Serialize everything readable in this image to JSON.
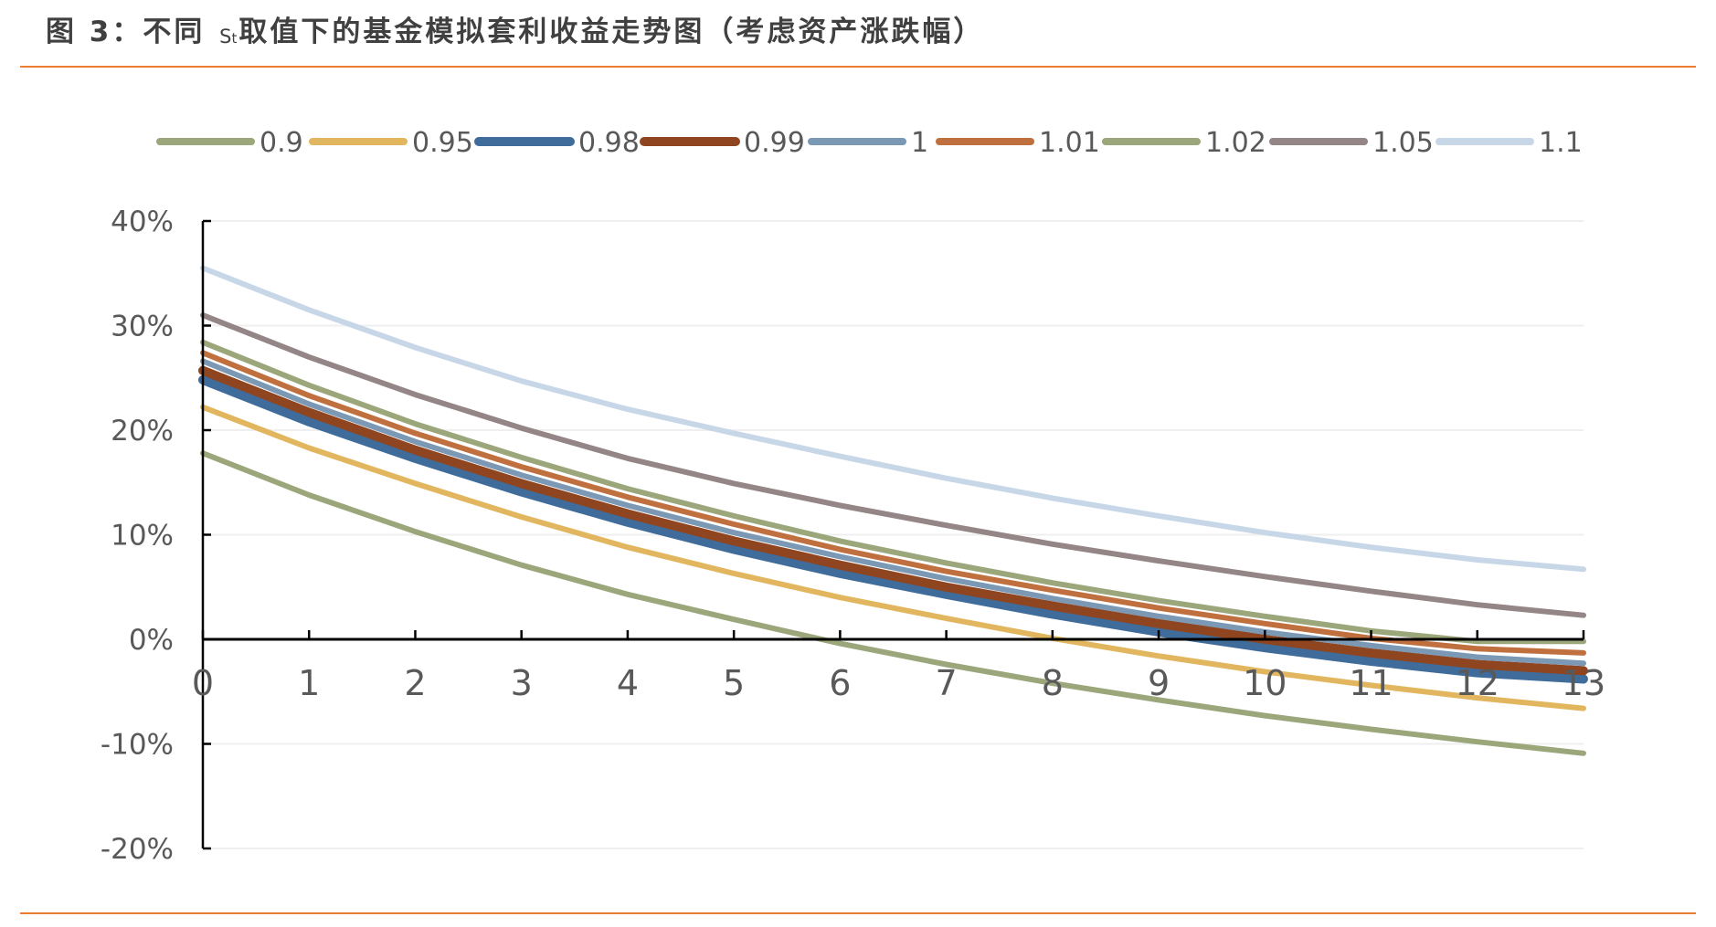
{
  "title": {
    "prefix": "图 3：不同 ",
    "symbol_main": "S",
    "symbol_sub": "t",
    "suffix": "取值下的基金模拟套利收益走势图（考虑资产涨跌幅）"
  },
  "chart_data": {
    "type": "line",
    "title": "图 3：不同 St取值下的基金模拟套利收益走势图（考虑资产涨跌幅）",
    "xlabel": "",
    "ylabel": "",
    "x": [
      0,
      1,
      2,
      3,
      4,
      5,
      6,
      7,
      8,
      9,
      10,
      11,
      12,
      13
    ],
    "xlim": [
      0,
      13
    ],
    "ylim": [
      -20,
      40
    ],
    "y_ticks": [
      -20,
      -10,
      0,
      10,
      20,
      30,
      40
    ],
    "y_tick_labels": [
      "-20%",
      "-10%",
      "0%",
      "10%",
      "20%",
      "30%",
      "40%"
    ],
    "y_unit": "%",
    "grid": "horizontal",
    "legend_position": "top",
    "series": [
      {
        "name": "0.9",
        "color": "#9BA67A",
        "values": [
          17.8,
          13.8,
          10.3,
          7.1,
          4.3,
          1.9,
          -0.4,
          -2.4,
          -4.2,
          -5.8,
          -7.3,
          -8.6,
          -9.8,
          -10.9
        ]
      },
      {
        "name": "0.95",
        "color": "#E2B65E",
        "values": [
          22.2,
          18.3,
          14.9,
          11.7,
          8.8,
          6.3,
          4.0,
          2.0,
          0.1,
          -1.6,
          -3.1,
          -4.4,
          -5.6,
          -6.6
        ]
      },
      {
        "name": "0.98",
        "color": "#3F6C9B",
        "values": [
          24.8,
          20.8,
          17.3,
          14.1,
          11.2,
          8.6,
          6.3,
          4.3,
          2.4,
          0.7,
          -0.8,
          -2.1,
          -3.2,
          -3.8
        ]
      },
      {
        "name": "0.99",
        "color": "#8F4520",
        "values": [
          25.7,
          21.7,
          18.1,
          14.9,
          12.0,
          9.4,
          7.1,
          5.0,
          3.2,
          1.5,
          0.0,
          -1.3,
          -2.4,
          -3.0
        ]
      },
      {
        "name": "1",
        "color": "#7B98B5",
        "values": [
          26.6,
          22.5,
          18.9,
          15.7,
          12.8,
          10.2,
          7.9,
          5.8,
          3.9,
          2.2,
          0.7,
          -0.6,
          -1.7,
          -2.3
        ]
      },
      {
        "name": "1.01",
        "color": "#C0703F",
        "values": [
          27.4,
          23.3,
          19.7,
          16.5,
          13.6,
          11.0,
          8.6,
          6.5,
          4.7,
          3.0,
          1.5,
          0.1,
          -0.9,
          -1.3
        ]
      },
      {
        "name": "1.02",
        "color": "#9BA67A",
        "values": [
          28.4,
          24.3,
          20.6,
          17.4,
          14.4,
          11.8,
          9.4,
          7.3,
          5.4,
          3.7,
          2.2,
          0.8,
          -0.2,
          -0.2
        ]
      },
      {
        "name": "1.05",
        "color": "#948587",
        "values": [
          31.0,
          27.0,
          23.4,
          20.2,
          17.3,
          14.9,
          12.8,
          10.9,
          9.1,
          7.5,
          6.0,
          4.6,
          3.3,
          2.3
        ]
      },
      {
        "name": "1.1",
        "color": "#C7D7E8",
        "values": [
          35.5,
          31.5,
          27.9,
          24.7,
          22.0,
          19.7,
          17.5,
          15.4,
          13.5,
          11.8,
          10.2,
          8.8,
          7.6,
          6.7
        ]
      }
    ]
  },
  "colors": {
    "accent_rule": "#ED7D31",
    "axis": "#000000",
    "grid": "#EFEFEF",
    "text": "#595959",
    "title": "#404040"
  }
}
